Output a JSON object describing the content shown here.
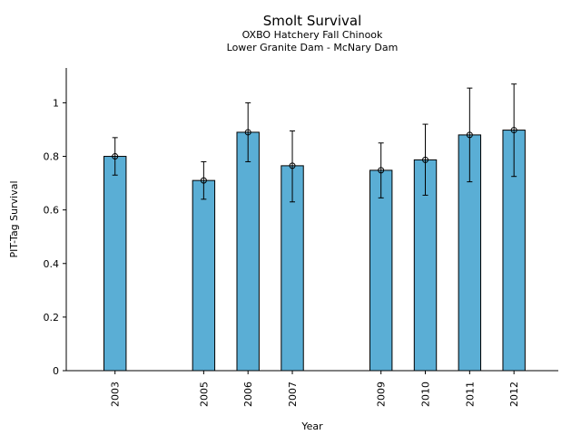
{
  "chart_data": {
    "type": "bar",
    "title": "Smolt Survival",
    "subtitle_lines": [
      "OXBO Hatchery Fall Chinook",
      "Lower Granite Dam - McNary Dam"
    ],
    "xlabel": "Year",
    "ylabel": "PIT-Tag Survival",
    "x": [
      2003,
      2005,
      2006,
      2007,
      2009,
      2010,
      2011,
      2012
    ],
    "categories": [
      "2003",
      "2005",
      "2006",
      "2007",
      "2009",
      "2010",
      "2011",
      "2012"
    ],
    "values": [
      0.8,
      0.71,
      0.89,
      0.765,
      0.748,
      0.787,
      0.88,
      0.898
    ],
    "error_low": [
      0.73,
      0.64,
      0.78,
      0.63,
      0.645,
      0.655,
      0.705,
      0.725
    ],
    "error_high": [
      0.87,
      0.78,
      1.0,
      0.895,
      0.85,
      0.92,
      1.055,
      1.07
    ],
    "xlim": [
      2001.9,
      2013.0
    ],
    "ylim": [
      0,
      1.13
    ],
    "yticks": [
      0,
      0.2,
      0.4,
      0.6,
      0.8,
      1.0
    ],
    "ytick_labels": [
      "0",
      "0.2",
      "0.4",
      "0.6",
      "0.8",
      "1"
    ],
    "bar_color": "#5aaed5",
    "grid": false,
    "legend": "none"
  }
}
